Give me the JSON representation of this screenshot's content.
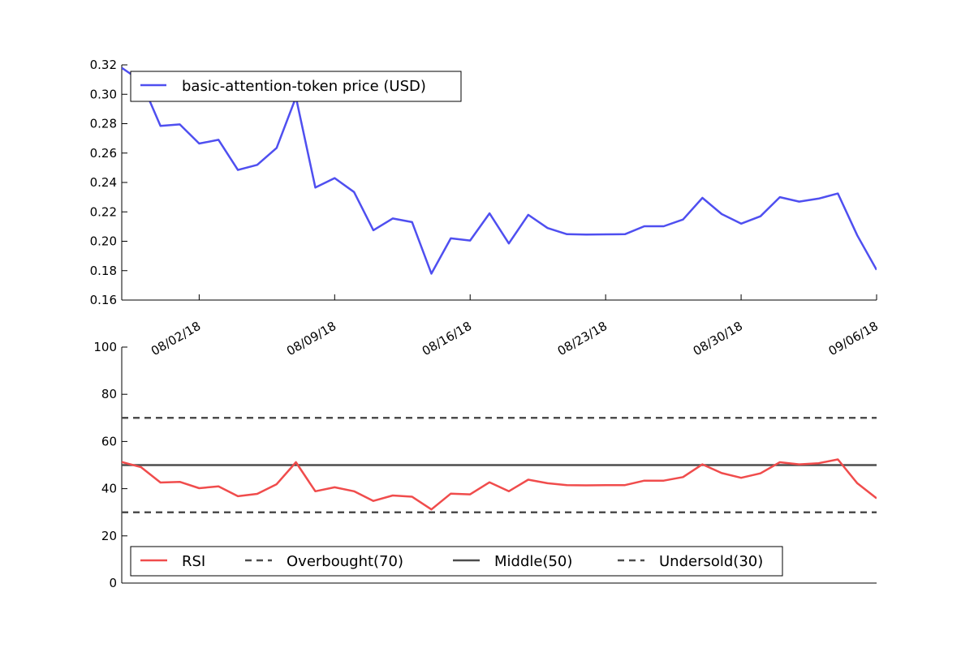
{
  "chart_data": [
    {
      "type": "line",
      "x": [
        "07/29/18",
        "07/30/18",
        "07/31/18",
        "08/01/18",
        "08/02/18",
        "08/03/18",
        "08/04/18",
        "08/05/18",
        "08/06/18",
        "08/07/18",
        "08/08/18",
        "08/09/18",
        "08/10/18",
        "08/11/18",
        "08/12/18",
        "08/13/18",
        "08/14/18",
        "08/15/18",
        "08/16/18",
        "08/17/18",
        "08/18/18",
        "08/19/18",
        "08/20/18",
        "08/21/18",
        "08/22/18",
        "08/23/18",
        "08/24/18",
        "08/25/18",
        "08/26/18",
        "08/27/18",
        "08/28/18",
        "08/29/18",
        "08/30/18",
        "08/31/18",
        "09/01/18",
        "09/02/18",
        "09/03/18",
        "09/04/18",
        "09/05/18",
        "09/06/18"
      ],
      "series": [
        {
          "name": "basic-attention-token price (USD)",
          "color": "#4f4ff0",
          "values": [
            0.318,
            0.309,
            0.2785,
            0.2795,
            0.2665,
            0.269,
            0.2485,
            0.252,
            0.2635,
            0.298,
            0.2365,
            0.243,
            0.2335,
            0.2075,
            0.2155,
            0.213,
            0.178,
            0.202,
            0.2005,
            0.219,
            0.1985,
            0.218,
            0.209,
            0.2048,
            0.2045,
            0.2047,
            0.2048,
            0.2102,
            0.2102,
            0.2148,
            0.2295,
            0.2185,
            0.212,
            0.217,
            0.23,
            0.227,
            0.229,
            0.2325,
            0.204,
            0.1805
          ]
        }
      ],
      "ylim": [
        0.16,
        0.32
      ],
      "yticks": [
        "0.16",
        "0.18",
        "0.20",
        "0.22",
        "0.24",
        "0.26",
        "0.28",
        "0.30",
        "0.32"
      ],
      "xtick_labels": [
        "08/02/18",
        "08/09/18",
        "08/16/18",
        "08/23/18",
        "08/30/18",
        "09/06/18"
      ],
      "legend": "top-left",
      "grid": false
    },
    {
      "type": "line",
      "x": [
        "07/29/18",
        "07/30/18",
        "07/31/18",
        "08/01/18",
        "08/02/18",
        "08/03/18",
        "08/04/18",
        "08/05/18",
        "08/06/18",
        "08/07/18",
        "08/08/18",
        "08/09/18",
        "08/10/18",
        "08/11/18",
        "08/12/18",
        "08/13/18",
        "08/14/18",
        "08/15/18",
        "08/16/18",
        "08/17/18",
        "08/18/18",
        "08/19/18",
        "08/20/18",
        "08/21/18",
        "08/22/18",
        "08/23/18",
        "08/24/18",
        "08/25/18",
        "08/26/18",
        "08/27/18",
        "08/28/18",
        "08/29/18",
        "08/30/18",
        "08/31/18",
        "09/01/18",
        "09/02/18",
        "09/03/18",
        "09/04/18",
        "09/05/18",
        "09/06/18"
      ],
      "series": [
        {
          "name": "RSI",
          "color": "#f04c4c",
          "values": [
            51.3,
            49.1,
            42.6,
            42.9,
            40.2,
            41,
            36.8,
            37.8,
            41.9,
            51.2,
            38.9,
            40.6,
            38.9,
            34.8,
            37.1,
            36.6,
            31.2,
            37.9,
            37.6,
            42.7,
            38.9,
            43.8,
            42.3,
            41.5,
            41.4,
            41.5,
            41.5,
            43.4,
            43.4,
            44.9,
            50.3,
            46.6,
            44.6,
            46.5,
            51.2,
            50.3,
            50.8,
            52.4,
            42.3,
            35.9
          ]
        }
      ],
      "reference_lines": [
        {
          "name": "Overbought(70)",
          "value": 70,
          "style": "dashed",
          "color": "#4d4d4d"
        },
        {
          "name": "Middle(50)",
          "value": 50,
          "style": "solid",
          "color": "#4d4d4d"
        },
        {
          "name": "Undersold(30)",
          "value": 30,
          "style": "dashed",
          "color": "#4d4d4d"
        }
      ],
      "ylim": [
        0,
        100
      ],
      "yticks": [
        "0",
        "20",
        "40",
        "60",
        "80",
        "100"
      ],
      "legend": "bottom-left",
      "grid": false
    }
  ]
}
